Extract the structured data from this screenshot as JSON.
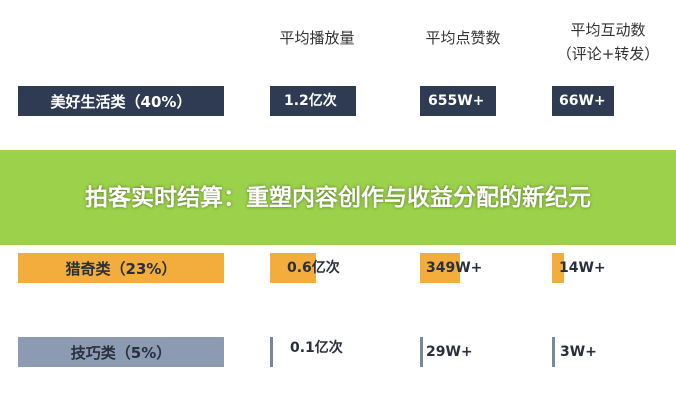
{
  "chart_data": {
    "type": "table",
    "columns": [
      {
        "label": "平均播放量",
        "sublabel": ""
      },
      {
        "label": "平均点赞数",
        "sublabel": ""
      },
      {
        "label": "平均互动数",
        "sublabel": "（评论+转发）"
      }
    ],
    "rows": [
      {
        "category": "美好生活类（40%）",
        "share": 40,
        "values": [
          1.2,
          655,
          66
        ],
        "labels": [
          "1.2亿次",
          "655W+",
          "66W+"
        ]
      },
      {
        "category": "猎奇类（23%）",
        "share": 23,
        "values": [
          0.6,
          349,
          14
        ],
        "labels": [
          "0.6亿次",
          "349W+",
          "14W+"
        ]
      },
      {
        "category": "技巧类（5%）",
        "share": 5,
        "values": [
          0.1,
          29,
          3
        ],
        "labels": [
          "0.1亿次",
          "29W+",
          "3W+"
        ]
      }
    ],
    "colors": {
      "row1": "#2f3b52",
      "row2": "#f3ad3c",
      "row3": "#7b8898"
    }
  },
  "banner": {
    "text": "拍客实时结算：重塑内容创作与收益分配的新纪元",
    "color": "#9bd14b"
  }
}
